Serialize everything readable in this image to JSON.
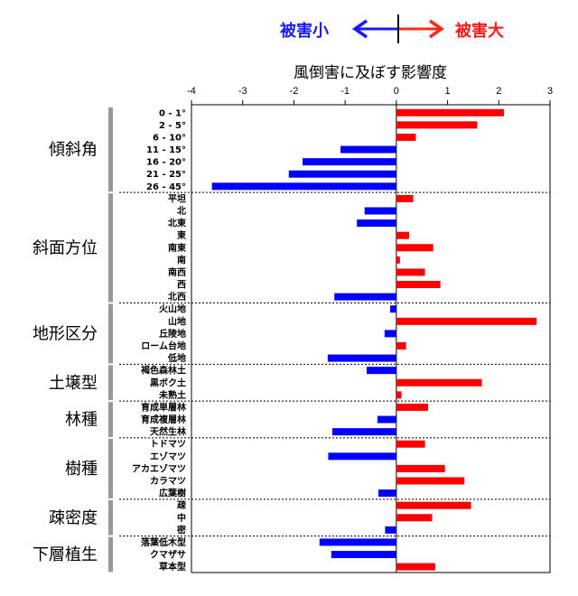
{
  "legend": {
    "low_label": "被害小",
    "high_label": "被害大",
    "low_color": "#1a1aff",
    "high_color": "#ff1a1a"
  },
  "chart_data": {
    "type": "bar",
    "orientation": "horizontal",
    "title": "風倒害に及ぼす影響度",
    "xlim": [
      -4,
      3
    ],
    "xticks": [
      -4,
      -3,
      -2,
      -1,
      0,
      1,
      2,
      3
    ],
    "xticklabels": [
      "-4",
      "-3",
      "-2",
      "-1",
      "0",
      "1",
      "2",
      "3"
    ],
    "grid": false,
    "positive_color": "#ff0000",
    "negative_color": "#0000ff",
    "groups": [
      {
        "name": "傾斜角",
        "items": [
          {
            "label": "0 - 1°",
            "value": 2.1
          },
          {
            "label": "2 - 5°",
            "value": 1.58
          },
          {
            "label": "6 - 10°",
            "value": 0.38
          },
          {
            "label": "11 - 15°",
            "value": -1.09
          },
          {
            "label": "16 - 20°",
            "value": -1.83
          },
          {
            "label": "21 - 25°",
            "value": -2.1
          },
          {
            "label": "26 - 45°",
            "value": -3.6
          }
        ]
      },
      {
        "name": "斜面方位",
        "items": [
          {
            "label": "平坦",
            "value": 0.33
          },
          {
            "label": "北",
            "value": -0.62
          },
          {
            "label": "北東",
            "value": -0.77
          },
          {
            "label": "東",
            "value": 0.25
          },
          {
            "label": "南東",
            "value": 0.72
          },
          {
            "label": "南",
            "value": 0.07
          },
          {
            "label": "南西",
            "value": 0.56
          },
          {
            "label": "西",
            "value": 0.86
          },
          {
            "label": "北西",
            "value": -1.21
          }
        ]
      },
      {
        "name": "地形区分",
        "items": [
          {
            "label": "火山地",
            "value": -0.12
          },
          {
            "label": "山地",
            "value": 2.74
          },
          {
            "label": "丘陵地",
            "value": -0.23
          },
          {
            "label": "ローム台地",
            "value": 0.19
          },
          {
            "label": "低地",
            "value": -1.34
          }
        ]
      },
      {
        "name": "土壌型",
        "items": [
          {
            "label": "褐色森林土",
            "value": -0.58
          },
          {
            "label": "黒ボク土",
            "value": 1.67
          },
          {
            "label": "未熟土",
            "value": 0.1
          }
        ]
      },
      {
        "name": "林種",
        "items": [
          {
            "label": "育成単層林",
            "value": 0.62
          },
          {
            "label": "育成複層林",
            "value": -0.37
          },
          {
            "label": "天然生林",
            "value": -1.25
          }
        ]
      },
      {
        "name": "樹種",
        "items": [
          {
            "label": "トドマツ",
            "value": 0.56
          },
          {
            "label": "エゾマツ",
            "value": -1.33
          },
          {
            "label": "アカエゾマツ",
            "value": 0.95
          },
          {
            "label": "カラマツ",
            "value": 1.33
          },
          {
            "label": "広葉樹",
            "value": -0.35
          }
        ]
      },
      {
        "name": "疎密度",
        "items": [
          {
            "label": "疎",
            "value": 1.46
          },
          {
            "label": "中",
            "value": 0.7
          },
          {
            "label": "密",
            "value": -0.22
          }
        ]
      },
      {
        "name": "下層植生",
        "items": [
          {
            "label": "落葉低木型",
            "value": -1.5
          },
          {
            "label": "クマザサ",
            "value": -1.27
          },
          {
            "label": "草本型",
            "value": 0.76
          }
        ]
      }
    ]
  }
}
